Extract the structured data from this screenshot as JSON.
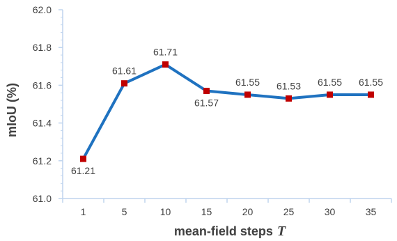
{
  "chart_data": {
    "type": "line",
    "categories": [
      "1",
      "5",
      "10",
      "15",
      "20",
      "25",
      "30",
      "35"
    ],
    "series": [
      {
        "values": [
          61.21,
          61.61,
          61.71,
          61.57,
          61.55,
          61.53,
          61.55,
          61.55
        ],
        "labels": [
          "61.21",
          "61.61",
          "61.71",
          "61.57",
          "61.55",
          "61.53",
          "61.55",
          "61.55"
        ],
        "label_position": [
          "below",
          "above",
          "above",
          "below",
          "above",
          "above",
          "above",
          "above"
        ]
      }
    ],
    "ylim": [
      61.0,
      62.0
    ],
    "yticks": [
      "61.0",
      "61.2",
      "61.4",
      "61.6",
      "61.8",
      "62.0"
    ],
    "ytick_values": [
      61.0,
      61.2,
      61.4,
      61.6,
      61.8,
      62.0
    ],
    "xlabel": "mean-field steps",
    "xlabel_var": "T",
    "ylabel": "mIoU (%)",
    "grid": false,
    "line_color": "#1f72c0",
    "marker_color": "#c00000",
    "axis_color": "#bfd4ee"
  }
}
